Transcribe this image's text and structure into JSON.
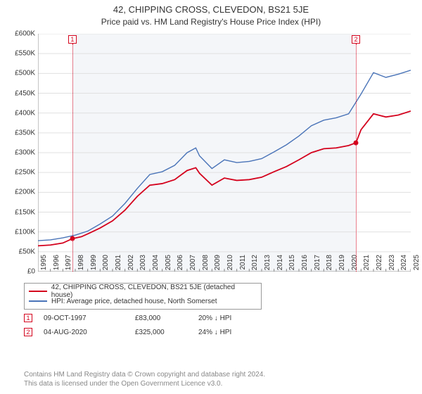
{
  "title": "42, CHIPPING CROSS, CLEVEDON, BS21 5JE",
  "subtitle": "Price paid vs. HM Land Registry's House Price Index (HPI)",
  "chart": {
    "type": "line",
    "background_color": "#ffffff",
    "shaded_color": "#f4f6f9",
    "grid_color": "#e0e0e0",
    "axis_color": "#888888",
    "ylim": [
      0,
      600
    ],
    "ytick_step": 50,
    "ytick_prefix": "£",
    "ytick_suffix": "K",
    "xlim": [
      1995,
      2025
    ],
    "xtick_step": 1,
    "shaded_ranges": [
      [
        1997.77,
        2020.59
      ]
    ],
    "series": [
      {
        "name": "price_paid",
        "color": "#d4021d",
        "line_width": 1.8,
        "data": [
          [
            1995,
            65
          ],
          [
            1996,
            67
          ],
          [
            1997,
            72
          ],
          [
            1997.77,
            83
          ],
          [
            1998.5,
            88
          ],
          [
            1999,
            95
          ],
          [
            2000,
            110
          ],
          [
            2001,
            128
          ],
          [
            2002,
            155
          ],
          [
            2003,
            190
          ],
          [
            2004,
            218
          ],
          [
            2005,
            222
          ],
          [
            2006,
            232
          ],
          [
            2007,
            255
          ],
          [
            2007.7,
            262
          ],
          [
            2008,
            248
          ],
          [
            2009,
            218
          ],
          [
            2010,
            236
          ],
          [
            2011,
            230
          ],
          [
            2012,
            232
          ],
          [
            2013,
            238
          ],
          [
            2014,
            252
          ],
          [
            2015,
            265
          ],
          [
            2016,
            282
          ],
          [
            2017,
            300
          ],
          [
            2018,
            310
          ],
          [
            2019,
            312
          ],
          [
            2020,
            318
          ],
          [
            2020.59,
            325
          ],
          [
            2021,
            358
          ],
          [
            2022,
            398
          ],
          [
            2023,
            390
          ],
          [
            2024,
            395
          ],
          [
            2025,
            405
          ]
        ]
      },
      {
        "name": "hpi",
        "color": "#4a74b8",
        "line_width": 1.4,
        "data": [
          [
            1995,
            78
          ],
          [
            1996,
            80
          ],
          [
            1997,
            85
          ],
          [
            1998,
            92
          ],
          [
            1999,
            102
          ],
          [
            2000,
            120
          ],
          [
            2001,
            140
          ],
          [
            2002,
            172
          ],
          [
            2003,
            210
          ],
          [
            2004,
            245
          ],
          [
            2005,
            252
          ],
          [
            2006,
            268
          ],
          [
            2007,
            300
          ],
          [
            2007.7,
            312
          ],
          [
            2008,
            292
          ],
          [
            2009,
            260
          ],
          [
            2010,
            282
          ],
          [
            2011,
            275
          ],
          [
            2012,
            278
          ],
          [
            2013,
            285
          ],
          [
            2014,
            302
          ],
          [
            2015,
            320
          ],
          [
            2016,
            342
          ],
          [
            2017,
            368
          ],
          [
            2018,
            382
          ],
          [
            2019,
            388
          ],
          [
            2020,
            398
          ],
          [
            2021,
            448
          ],
          [
            2022,
            502
          ],
          [
            2023,
            490
          ],
          [
            2024,
            498
          ],
          [
            2025,
            508
          ]
        ]
      }
    ],
    "markers": [
      {
        "id": "1",
        "x": 1997.77,
        "y": 83,
        "color": "#d4021d"
      },
      {
        "id": "2",
        "x": 2020.59,
        "y": 325,
        "color": "#d4021d"
      }
    ]
  },
  "legend": [
    {
      "color": "#d4021d",
      "label": "42, CHIPPING CROSS, CLEVEDON, BS21 5JE (detached house)"
    },
    {
      "color": "#4a74b8",
      "label": "HPI: Average price, detached house, North Somerset"
    }
  ],
  "transactions": [
    {
      "id": "1",
      "color": "#d4021d",
      "date": "09-OCT-1997",
      "price": "£83,000",
      "delta": "20%  ↓  HPI"
    },
    {
      "id": "2",
      "color": "#d4021d",
      "date": "04-AUG-2020",
      "price": "£325,000",
      "delta": "24%  ↓  HPI"
    }
  ],
  "footer_line1": "Contains HM Land Registry data © Crown copyright and database right 2024.",
  "footer_line2": "This data is licensed under the Open Government Licence v3.0."
}
